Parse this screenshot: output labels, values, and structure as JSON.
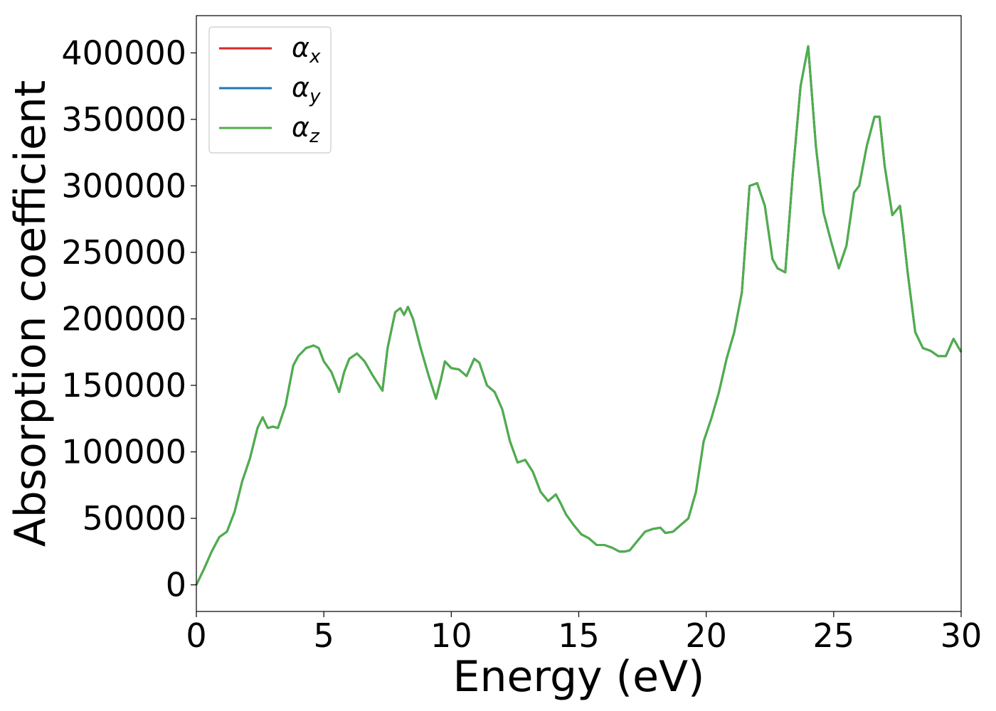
{
  "chart_data": {
    "type": "line",
    "xlabel": "Energy (eV)",
    "ylabel": "Absorption coefficient",
    "xlim": [
      0,
      30
    ],
    "ylim": [
      -20000,
      428000
    ],
    "x_ticks": [
      0,
      5,
      10,
      15,
      20,
      25,
      30
    ],
    "x_tick_labels": [
      "0",
      "5",
      "10",
      "15",
      "20",
      "25",
      "30"
    ],
    "y_ticks": [
      0,
      50000,
      100000,
      150000,
      200000,
      250000,
      300000,
      350000,
      400000
    ],
    "y_tick_labels": [
      "0",
      "50000",
      "100000",
      "150000",
      "200000",
      "250000",
      "300000",
      "350000",
      "400000"
    ],
    "grid": false,
    "legend_position": "top-left",
    "series": [
      {
        "name": "αx",
        "base": "α",
        "sub": "x",
        "color": "#d62728"
      },
      {
        "name": "αy",
        "base": "α",
        "sub": "y",
        "color": "#1f77b4"
      },
      {
        "name": "αz",
        "base": "α",
        "sub": "z",
        "color": "#4daf4a"
      }
    ],
    "x": [
      0,
      0.3,
      0.6,
      0.9,
      1.2,
      1.5,
      1.8,
      2.1,
      2.4,
      2.6,
      2.8,
      3.0,
      3.2,
      3.5,
      3.8,
      4.0,
      4.3,
      4.6,
      4.8,
      5.0,
      5.3,
      5.6,
      5.8,
      6.0,
      6.3,
      6.6,
      6.9,
      7.1,
      7.3,
      7.5,
      7.8,
      8.0,
      8.15,
      8.3,
      8.5,
      8.8,
      9.1,
      9.4,
      9.6,
      9.75,
      10.0,
      10.3,
      10.6,
      10.9,
      11.1,
      11.4,
      11.7,
      12.0,
      12.3,
      12.6,
      12.9,
      13.2,
      13.5,
      13.8,
      14.1,
      14.3,
      14.5,
      14.8,
      15.1,
      15.4,
      15.7,
      16.0,
      16.3,
      16.6,
      16.8,
      17.0,
      17.3,
      17.6,
      17.9,
      18.2,
      18.4,
      18.7,
      19.0,
      19.3,
      19.6,
      19.9,
      20.2,
      20.5,
      20.8,
      21.1,
      21.4,
      21.7,
      22.0,
      22.3,
      22.6,
      22.8,
      23.1,
      23.4,
      23.7,
      24.0,
      24.1,
      24.3,
      24.6,
      24.9,
      25.2,
      25.5,
      25.8,
      26.0,
      26.3,
      26.6,
      26.8,
      27.0,
      27.3,
      27.6,
      27.7,
      27.9,
      28.2,
      28.5,
      28.8,
      29.1,
      29.4,
      29.7,
      30.0
    ],
    "values": [
      0,
      12000,
      25000,
      36000,
      40000,
      55000,
      78000,
      95000,
      118000,
      126000,
      118000,
      119000,
      118000,
      135000,
      165000,
      172000,
      178000,
      180000,
      178000,
      168000,
      160000,
      145000,
      160000,
      170000,
      174000,
      168000,
      158000,
      152000,
      146000,
      178000,
      205000,
      208000,
      203000,
      209000,
      200000,
      178000,
      158000,
      140000,
      155000,
      168000,
      163000,
      162000,
      157000,
      170000,
      167000,
      150000,
      145000,
      132000,
      108000,
      92000,
      94000,
      85000,
      70000,
      63000,
      68000,
      61000,
      53000,
      45000,
      38000,
      35000,
      30000,
      30000,
      28000,
      25000,
      25000,
      26000,
      33000,
      40000,
      42000,
      43000,
      39000,
      40000,
      45000,
      50000,
      70000,
      108000,
      125000,
      145000,
      170000,
      190000,
      220000,
      300000,
      302000,
      285000,
      245000,
      238000,
      235000,
      310000,
      375000,
      405000,
      380000,
      330000,
      280000,
      258000,
      238000,
      255000,
      295000,
      300000,
      330000,
      352000,
      352000,
      315000,
      278000,
      285000,
      270000,
      235000,
      190000,
      178000,
      176000,
      172000,
      172000,
      185000,
      175000
    ]
  }
}
